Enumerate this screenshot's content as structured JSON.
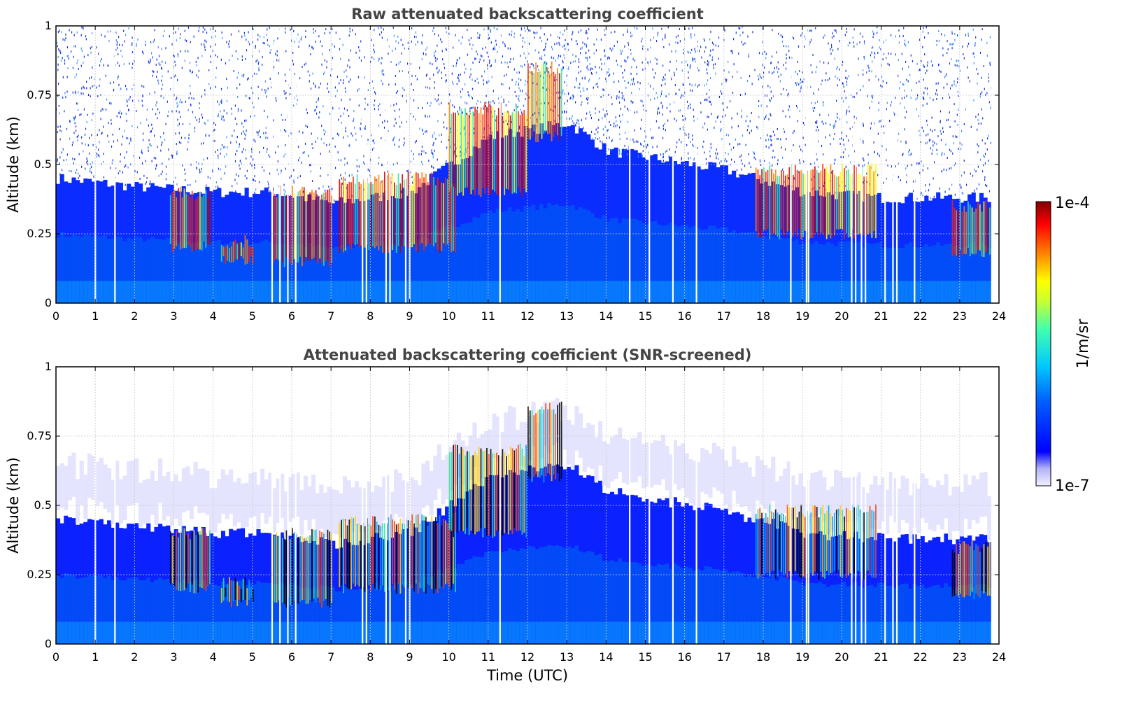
{
  "chart_data": [
    {
      "type": "heatmap",
      "title": "Raw attenuated backscattering coefficient",
      "xlabel": "",
      "ylabel": "Altitude (km)",
      "xlim": [
        0,
        24
      ],
      "ylim": [
        0,
        1
      ],
      "xticks": [
        "0",
        "1",
        "2",
        "3",
        "4",
        "5",
        "6",
        "7",
        "8",
        "9",
        "10",
        "11",
        "12",
        "13",
        "14",
        "15",
        "16",
        "17",
        "18",
        "19",
        "20",
        "21",
        "22",
        "23",
        "24"
      ],
      "yticks": [
        "0",
        "0.25",
        "0.5",
        "0.75",
        "1"
      ],
      "grid": true,
      "colorscale": "jet",
      "boundary_layer_top_km": [
        [
          0,
          0.45
        ],
        [
          2,
          0.42
        ],
        [
          4,
          0.4
        ],
        [
          5.5,
          0.4
        ],
        [
          7,
          0.36
        ],
        [
          9,
          0.4
        ],
        [
          11,
          0.6
        ],
        [
          13,
          0.65
        ],
        [
          14,
          0.55
        ],
        [
          17,
          0.48
        ],
        [
          19,
          0.4
        ],
        [
          21,
          0.38
        ],
        [
          23.8,
          0.38
        ]
      ],
      "aerosol_layers": [
        {
          "t_start": 2.9,
          "t_end": 3.9,
          "alt_bottom_km": 0.2,
          "alt_top_km": 0.4
        },
        {
          "t_start": 4.2,
          "t_end": 5.0,
          "alt_bottom_km": 0.15,
          "alt_top_km": 0.22
        },
        {
          "t_start": 5.5,
          "t_end": 7.0,
          "alt_bottom_km": 0.15,
          "alt_top_km": 0.4
        },
        {
          "t_start": 7.2,
          "t_end": 10.2,
          "alt_bottom_km": 0.2,
          "alt_top_km": 0.45
        },
        {
          "t_start": 10.0,
          "t_end": 12.0,
          "alt_bottom_km": 0.4,
          "alt_top_km": 0.7
        },
        {
          "t_start": 12.0,
          "t_end": 12.9,
          "alt_bottom_km": 0.6,
          "alt_top_km": 0.85
        },
        {
          "t_start": 17.8,
          "t_end": 20.9,
          "alt_bottom_km": 0.25,
          "alt_top_km": 0.48
        },
        {
          "t_start": 22.8,
          "t_end": 23.8,
          "alt_bottom_km": 0.18,
          "alt_top_km": 0.35
        }
      ],
      "missing_data_time_h": [
        1.0,
        1.5,
        5.5,
        5.7,
        5.9,
        6.1,
        7.8,
        7.9,
        8.4,
        8.5,
        8.9,
        9.0,
        11.3,
        14.6,
        15.1,
        15.7,
        16.3,
        18.7,
        19.1,
        19.15,
        20.25,
        20.35,
        20.5,
        20.6,
        21.1,
        21.3,
        21.4,
        21.85
      ]
    },
    {
      "type": "heatmap",
      "title": "Attenuated backscattering coefficient (SNR-screened)",
      "xlabel": "Time (UTC)",
      "ylabel": "Altitude (km)",
      "xlim": [
        0,
        24
      ],
      "ylim": [
        0,
        1
      ],
      "xticks": [
        "0",
        "1",
        "2",
        "3",
        "4",
        "5",
        "6",
        "7",
        "8",
        "9",
        "10",
        "11",
        "12",
        "13",
        "14",
        "15",
        "16",
        "17",
        "18",
        "19",
        "20",
        "21",
        "22",
        "23",
        "24"
      ],
      "yticks": [
        "0",
        "0.25",
        "0.5",
        "0.75",
        "1"
      ],
      "grid": true,
      "colorscale": "jet",
      "colorbar": {
        "label": "1/m/sr",
        "max_label": "1e-4",
        "min_label": "1e-7"
      }
    }
  ]
}
